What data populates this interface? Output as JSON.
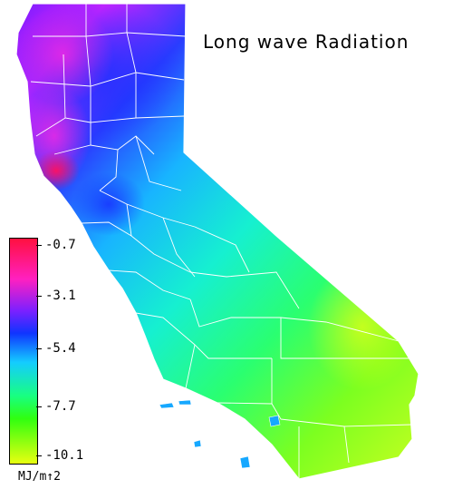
{
  "title": "Long wave Radiation",
  "legend": {
    "ticks": [
      "-0.7",
      "-3.1",
      "-5.4",
      "-7.7",
      "-10.1"
    ],
    "units": "MJ/m↑2",
    "colors": [
      "#ff1040",
      "#ff20c0",
      "#7c20ff",
      "#1034ff",
      "#14ccff",
      "#18ff80",
      "#30ff10",
      "#e8ff10"
    ]
  }
}
